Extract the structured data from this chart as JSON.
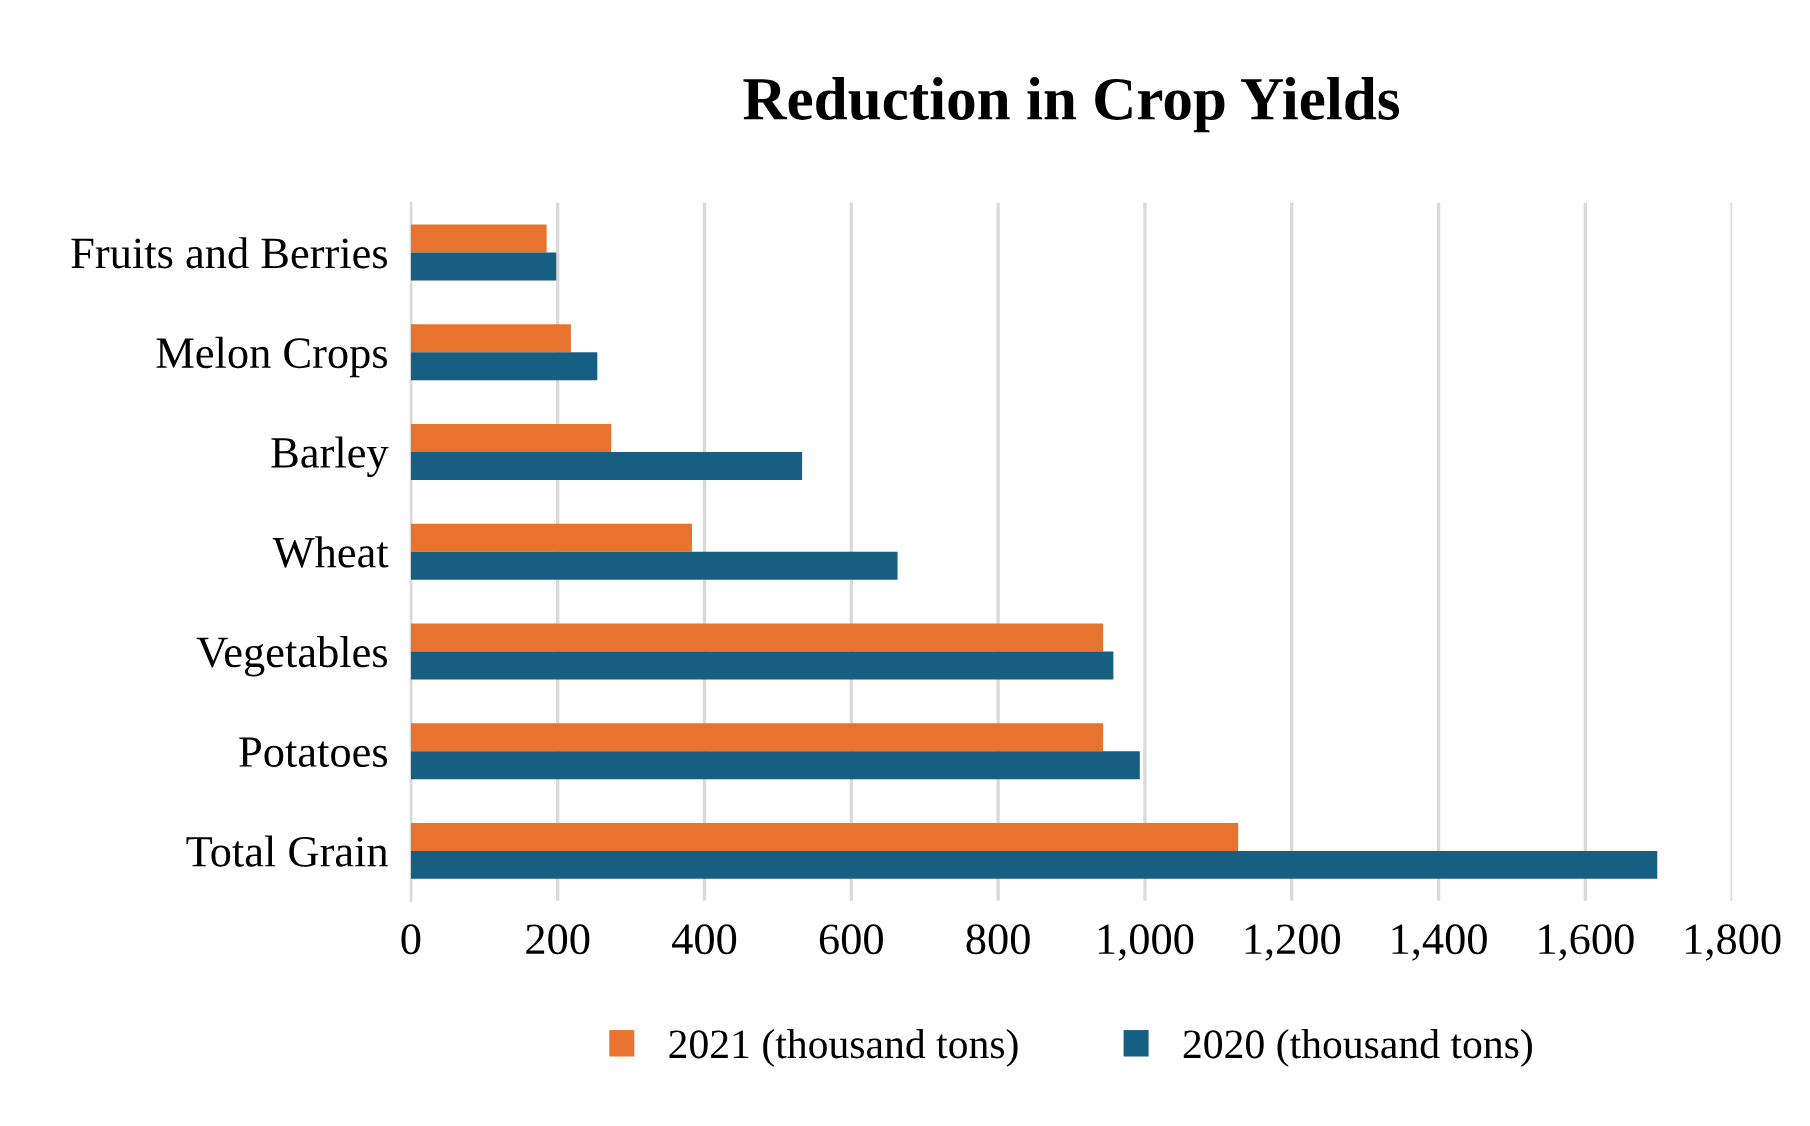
{
  "chart_data": {
    "type": "bar",
    "orientation": "horizontal",
    "title": "Reduction in Crop Yields",
    "categories": [
      "Fruits and Berries",
      "Melon Crops",
      "Barley",
      "Wheat",
      "Vegetables",
      "Potatoes",
      "Total Grain"
    ],
    "series": [
      {
        "name": "2021 (thousand tons)",
        "color": "#e8732f",
        "values": [
          185,
          218,
          273,
          383,
          943,
          943,
          1127
        ]
      },
      {
        "name": "2020 (thousand tons)",
        "color": "#175f82",
        "values": [
          198,
          254,
          533,
          663,
          957,
          993,
          1698
        ]
      }
    ],
    "xlim": [
      0,
      1800
    ],
    "xticks": [
      0,
      {
        "value": 200,
        "label": "200"
      },
      {
        "value": 400,
        "label": "400"
      },
      {
        "value": 600,
        "label": "600"
      },
      {
        "value": 800,
        "label": "800"
      },
      {
        "value": 1000,
        "label": "1,000"
      },
      {
        "value": 1200,
        "label": "1,200"
      },
      {
        "value": 1400,
        "label": "1,400"
      },
      {
        "value": 1600,
        "label": "1,600"
      },
      {
        "value": 1800,
        "label": "1,800"
      }
    ],
    "grid": "x",
    "legend": "bottom"
  }
}
